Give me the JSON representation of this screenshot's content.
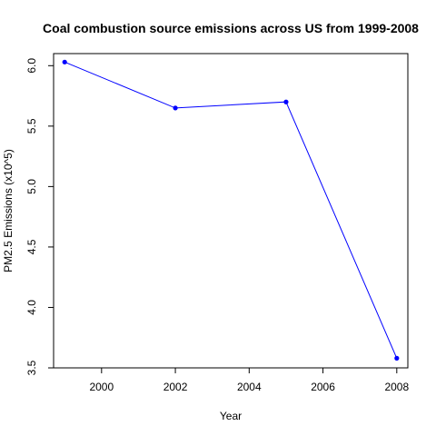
{
  "chart_data": {
    "type": "line",
    "title": "Coal combustion source emissions across US from 1999-2008",
    "xlabel": "Year",
    "ylabel": "PM2.5 Emissions (x10^5)",
    "x": [
      1999,
      2002,
      2005,
      2008
    ],
    "series": [
      {
        "values": [
          6.03,
          5.65,
          5.7,
          3.58
        ]
      }
    ],
    "xlim": [
      1998.7,
      2008.3
    ],
    "ylim": [
      3.5,
      6.1
    ],
    "x_ticks": [
      2000,
      2002,
      2004,
      2006,
      2008
    ],
    "x_tick_labels": [
      "2000",
      "2002",
      "2004",
      "2006",
      "2008"
    ],
    "y_ticks": [
      3.5,
      4.0,
      4.5,
      5.0,
      5.5,
      6.0
    ],
    "y_tick_labels": [
      "3.5",
      "4.0",
      "4.5",
      "5.0",
      "5.5",
      "6.0"
    ],
    "grid": false,
    "legend": "none",
    "line_color": "#0000ff",
    "point_color": "#0000ff"
  }
}
